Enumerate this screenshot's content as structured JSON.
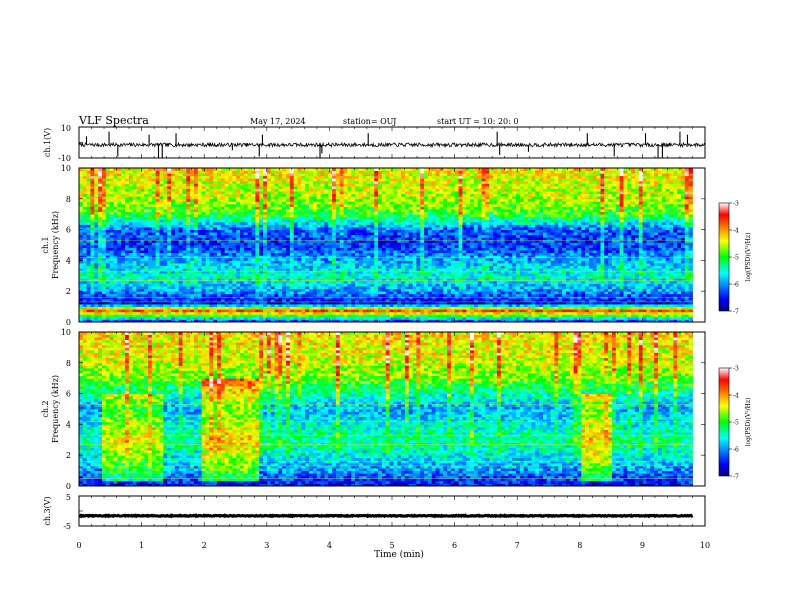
{
  "header": {
    "title": "VLF Spectra",
    "date": "May 17, 2024",
    "station": "station= OUJ",
    "start": "start  UT =   10: 20: 0"
  },
  "colorbar": {
    "label": "log(PSD)(V²/Hz)",
    "ticks": [
      "-3",
      "-4",
      "-5",
      "-6",
      "-7"
    ]
  },
  "chart_data": [
    {
      "type": "line",
      "panel": "ch1-waveform",
      "ylabel": "ch.1(V)",
      "ylim": [
        -10,
        10
      ],
      "y_tick_labels": [
        "10",
        "-10"
      ],
      "x_range_min": [
        0,
        10
      ],
      "baseline_v": -1.5,
      "noise_amplitude_v": 1.2,
      "spikes": [
        {
          "t": 0.12,
          "v": 4
        },
        {
          "t": 0.48,
          "v": 7
        },
        {
          "t": 0.62,
          "v": -9
        },
        {
          "t": 1.12,
          "v": 5
        },
        {
          "t": 1.27,
          "v": -10
        },
        {
          "t": 1.33,
          "v": -10
        },
        {
          "t": 1.55,
          "v": 6
        },
        {
          "t": 2.45,
          "v": -5
        },
        {
          "t": 2.88,
          "v": -9
        },
        {
          "t": 2.93,
          "v": 5
        },
        {
          "t": 3.85,
          "v": -10
        },
        {
          "t": 3.88,
          "v": -7
        },
        {
          "t": 4.62,
          "v": 6
        },
        {
          "t": 6.68,
          "v": 7
        },
        {
          "t": 6.72,
          "v": -8
        },
        {
          "t": 7.18,
          "v": -6
        },
        {
          "t": 8.12,
          "v": 6
        },
        {
          "t": 8.55,
          "v": -9
        },
        {
          "t": 9.05,
          "v": 6
        },
        {
          "t": 9.25,
          "v": -10
        },
        {
          "t": 9.32,
          "v": -10
        },
        {
          "t": 9.6,
          "v": 7
        },
        {
          "t": 9.72,
          "v": 5
        }
      ]
    },
    {
      "type": "heatmap",
      "panel": "ch1-spectrogram",
      "ylabel_channel": "ch.1",
      "ylabel": "Frequency (kHz)",
      "ylim": [
        0,
        10
      ],
      "y_tick_labels": [
        "0",
        "2",
        "4",
        "6",
        "8",
        "10"
      ],
      "color_range_log_psd": [
        -7,
        -3
      ],
      "x_range_min": [
        0,
        9.8
      ],
      "mean_log_psd_by_freq_khz": [
        {
          "f": 0.0,
          "v": -6.5
        },
        {
          "f": 0.8,
          "v": -3.6
        },
        {
          "f": 1.2,
          "v": -6.6
        },
        {
          "f": 2.0,
          "v": -6.0
        },
        {
          "f": 3.0,
          "v": -5.5
        },
        {
          "f": 4.0,
          "v": -5.9
        },
        {
          "f": 5.0,
          "v": -6.4
        },
        {
          "f": 6.0,
          "v": -6.2
        },
        {
          "f": 7.0,
          "v": -5.0
        },
        {
          "f": 8.0,
          "v": -4.6
        },
        {
          "f": 9.0,
          "v": -4.5
        },
        {
          "f": 10.0,
          "v": -4.3
        }
      ],
      "burst_segments": []
    },
    {
      "type": "heatmap",
      "panel": "ch2-spectrogram",
      "ylabel_channel": "ch.2",
      "ylabel": "Frequency (kHz)",
      "ylim": [
        0,
        10
      ],
      "y_tick_labels": [
        "0",
        "2",
        "4",
        "6",
        "8",
        "10"
      ],
      "color_range_log_psd": [
        -7,
        -3
      ],
      "x_range_min": [
        0,
        9.8
      ],
      "mean_log_psd_by_freq_khz": [
        {
          "f": 0.0,
          "v": -6.6
        },
        {
          "f": 1.0,
          "v": -6.0
        },
        {
          "f": 2.0,
          "v": -5.6
        },
        {
          "f": 3.0,
          "v": -5.3
        },
        {
          "f": 4.0,
          "v": -5.6
        },
        {
          "f": 5.0,
          "v": -5.9
        },
        {
          "f": 6.0,
          "v": -5.4
        },
        {
          "f": 7.0,
          "v": -4.8
        },
        {
          "f": 8.0,
          "v": -4.5
        },
        {
          "f": 9.0,
          "v": -4.4
        },
        {
          "f": 10.0,
          "v": -4.3
        }
      ],
      "burst_segments": [
        {
          "t_start": 0.35,
          "t_end": 1.35,
          "boost": 0.9,
          "f_max": 6
        },
        {
          "t_start": 1.95,
          "t_end": 2.9,
          "boost": 1.1,
          "f_max": 7
        },
        {
          "t_start": 8.0,
          "t_end": 8.5,
          "boost": 1.1,
          "f_max": 6
        }
      ]
    },
    {
      "type": "line",
      "panel": "ch3-waveform",
      "ylabel": "ch.3(V)",
      "ylim": [
        -5,
        5
      ],
      "y_tick_labels": [
        "5",
        "-5"
      ],
      "x_range_min": [
        0,
        9.8
      ],
      "baseline_v": -1.6,
      "noise_amplitude_v": 0.15,
      "spikes": []
    }
  ],
  "x_axis": {
    "label": "Time (min)",
    "ticks": [
      "0",
      "1",
      "2",
      "3",
      "4",
      "5",
      "6",
      "7",
      "8",
      "9",
      "10"
    ]
  }
}
